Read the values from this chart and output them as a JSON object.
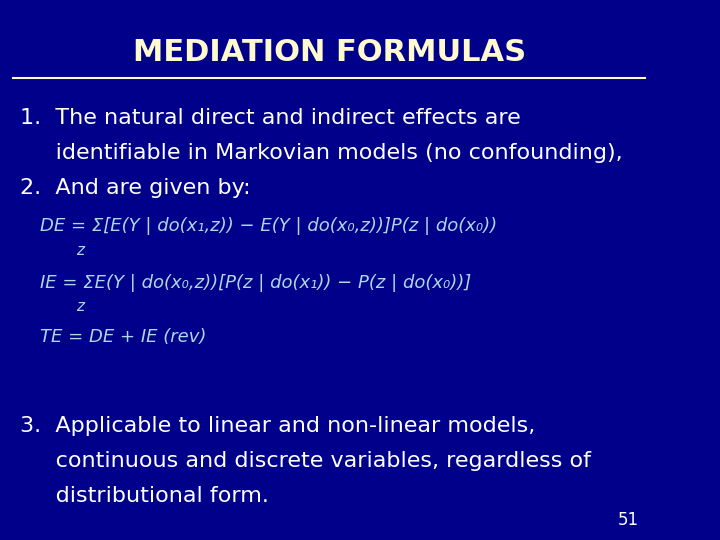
{
  "bg_color": "#00008B",
  "title": "MEDIATION FORMULAS",
  "title_color": "#FFFACD",
  "title_fontsize": 22,
  "line_color": "#FFFACD",
  "text_color": "#FFFFFF",
  "formula_color": "#ADD8E6",
  "item1_line1": "1.  The natural direct and indirect effects are",
  "item1_line2": "     identifiable in Markovian models (no confounding),",
  "item2": "2.  And are given by:",
  "formula_DE": "DE = Σ[E(Y | do(x₁,z)) − E(Y | do(x₀,z))]P(z | do(x₀))",
  "formula_DE_sub": "z",
  "formula_IE": "IE = ΣE(Y | do(x₀,z))[P(z | do(x₁)) − P(z | do(x₀))]",
  "formula_IE_sub": "z",
  "formula_TE": "TE = DE + IE (rev)",
  "item3_line1": "3.  Applicable to linear and non-linear models,",
  "item3_line2": "     continuous and discrete variables, regardless of",
  "item3_line3": "     distributional form.",
  "page_num": "51",
  "text_fontsize": 16,
  "formula_fontsize": 13
}
